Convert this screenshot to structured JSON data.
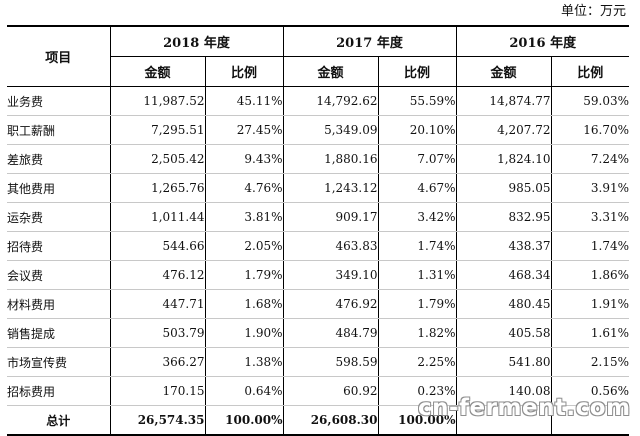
{
  "unit_note": "单位：万元",
  "headers": {
    "item": "项目",
    "years": [
      "2018 年度",
      "2017 年度",
      "2016 年度"
    ],
    "amount": "金额",
    "ratio": "比例"
  },
  "rows": [
    {
      "item": "业务费",
      "v": [
        "11,987.52",
        "45.11%",
        "14,792.62",
        "55.59%",
        "14,874.77",
        "59.03%"
      ]
    },
    {
      "item": "职工薪酬",
      "v": [
        "7,295.51",
        "27.45%",
        "5,349.09",
        "20.10%",
        "4,207.72",
        "16.70%"
      ]
    },
    {
      "item": "差旅费",
      "v": [
        "2,505.42",
        "9.43%",
        "1,880.16",
        "7.07%",
        "1,824.10",
        "7.24%"
      ]
    },
    {
      "item": "其他费用",
      "v": [
        "1,265.76",
        "4.76%",
        "1,243.12",
        "4.67%",
        "985.05",
        "3.91%"
      ]
    },
    {
      "item": "运杂费",
      "v": [
        "1,011.44",
        "3.81%",
        "909.17",
        "3.42%",
        "832.95",
        "3.31%"
      ]
    },
    {
      "item": "招待费",
      "v": [
        "544.66",
        "2.05%",
        "463.83",
        "1.74%",
        "438.37",
        "1.74%"
      ]
    },
    {
      "item": "会议费",
      "v": [
        "476.12",
        "1.79%",
        "349.10",
        "1.31%",
        "468.34",
        "1.86%"
      ]
    },
    {
      "item": "材料费用",
      "v": [
        "447.71",
        "1.68%",
        "476.92",
        "1.79%",
        "480.45",
        "1.91%"
      ]
    },
    {
      "item": "销售提成",
      "v": [
        "503.79",
        "1.90%",
        "484.79",
        "1.82%",
        "405.58",
        "1.61%"
      ]
    },
    {
      "item": "市场宣传费",
      "v": [
        "366.27",
        "1.38%",
        "598.59",
        "2.25%",
        "541.80",
        "2.15%"
      ]
    },
    {
      "item": "招标费用",
      "v": [
        "170.15",
        "0.64%",
        "60.92",
        "0.23%",
        "140.08",
        "0.56%"
      ]
    }
  ],
  "total": {
    "item": "总计",
    "v": [
      "26,574.35",
      "100.00%",
      "26,608.30",
      "100.00%",
      "",
      ""
    ]
  },
  "watermark": "cn-ferment.com"
}
